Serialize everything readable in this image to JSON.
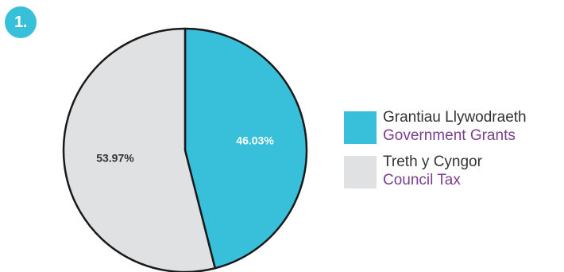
{
  "badge": {
    "label": "1."
  },
  "colors": {
    "badge": "#38c0da",
    "outline": "#1a1a1a",
    "secondary_text": "#7a3e8e"
  },
  "chart_data": {
    "type": "pie",
    "slices": [
      {
        "label_cy": "Grantiau Llywodraeth",
        "label_en": "Government Grants",
        "value": 46.03,
        "value_label": "46.03%",
        "color": "#38c0da",
        "text_color": "#ffffff"
      },
      {
        "label_cy": "Treth y Cyngor",
        "label_en": "Council Tax",
        "value": 53.97,
        "value_label": "53.97%",
        "color": "#e0e1e3",
        "text_color": "#333333"
      }
    ],
    "legend_position": "right"
  }
}
